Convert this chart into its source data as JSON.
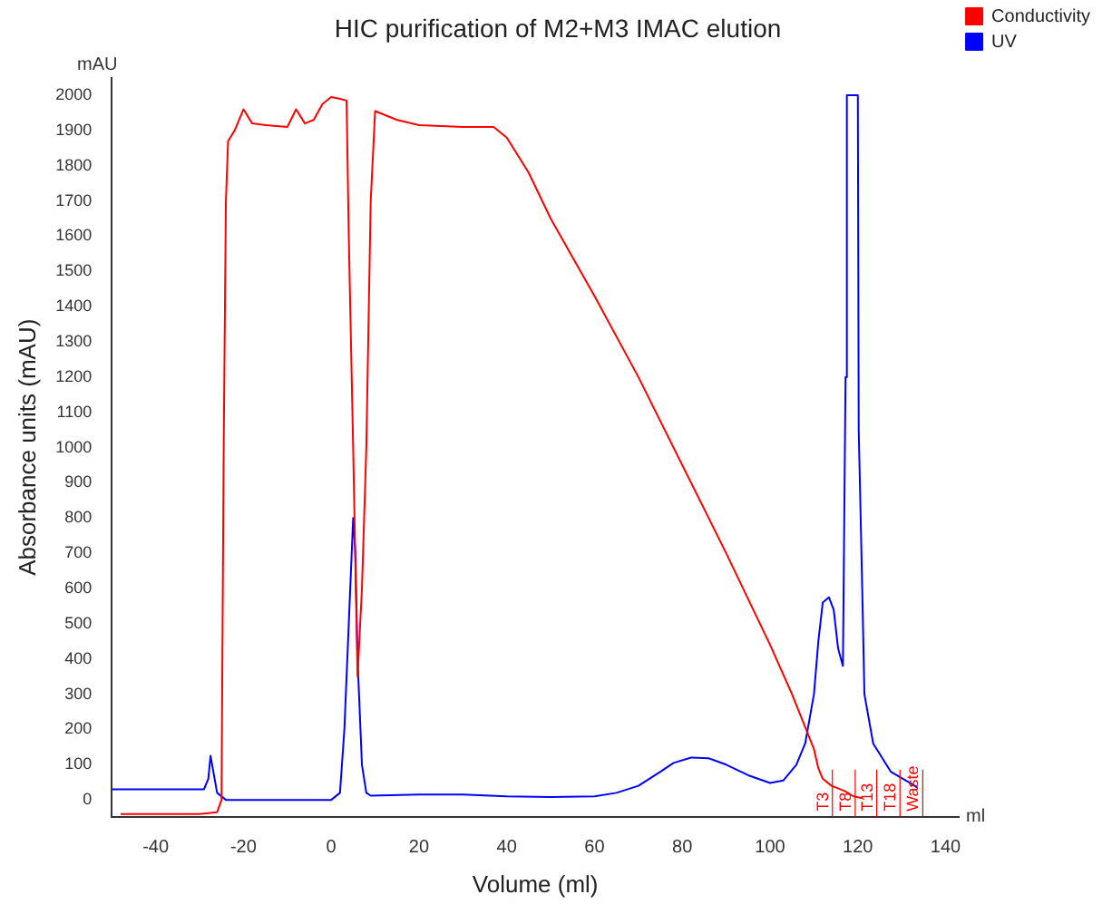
{
  "chart_data": {
    "type": "line",
    "title": "HIC purification of M2+M3 IMAC elution",
    "xlabel": "Volume (ml)",
    "ylabel": "Absorbance units (mAU)",
    "xlim": [
      -50,
      143
    ],
    "ylim": [
      -48,
      2050
    ],
    "xticks": [
      -40,
      -20,
      0,
      20,
      40,
      60,
      80,
      100,
      120,
      140
    ],
    "yticks": [
      0,
      100,
      200,
      300,
      400,
      500,
      600,
      700,
      800,
      900,
      1000,
      1100,
      1200,
      1300,
      1400,
      1500,
      1600,
      1700,
      1800,
      1900,
      2000
    ],
    "grid": false,
    "legend": "top right",
    "marker": "none",
    "line_style": "solid",
    "annotations": [
      "mAU",
      "ml"
    ],
    "ref_lines": [
      {
        "axis": "x",
        "value": 114.2,
        "label": "T3",
        "color": "#ff0000"
      },
      {
        "axis": "x",
        "value": 119.4,
        "label": "T8",
        "color": "#ff0000"
      },
      {
        "axis": "x",
        "value": 124.3,
        "label": "T13",
        "color": "#ff0000"
      },
      {
        "axis": "x",
        "value": 129.6,
        "label": "T18",
        "color": "#ff0000"
      },
      {
        "axis": "x",
        "value": 134.8,
        "label": "Waste",
        "color": "#ff0000"
      }
    ],
    "series": [
      {
        "name": "Conductivity",
        "color": "#ff0000",
        "x": [
          -48,
          -30,
          -26,
          -25,
          -24.5,
          -24,
          -23.5,
          -22,
          -20,
          -18,
          -15,
          -10,
          -8,
          -6,
          -4,
          -2,
          0,
          2,
          3.5,
          4,
          5,
          6,
          7,
          8,
          9,
          10,
          15,
          20,
          30,
          37,
          40,
          45,
          50,
          60,
          70,
          80,
          90,
          100,
          105,
          110,
          111,
          112,
          114,
          117,
          119,
          121
        ],
        "values": [
          -40,
          -40,
          -35,
          0,
          1000,
          1700,
          1870,
          1900,
          1960,
          1920,
          1915,
          1910,
          1960,
          1920,
          1930,
          1975,
          1995,
          1990,
          1985,
          1600,
          1000,
          350,
          600,
          1000,
          1700,
          1955,
          1930,
          1915,
          1910,
          1910,
          1880,
          1780,
          1650,
          1430,
          1200,
          950,
          700,
          440,
          300,
          144,
          90,
          60,
          40,
          25,
          10,
          5
        ]
      },
      {
        "name": "UV",
        "color": "#0000ff",
        "x": [
          -50,
          -29,
          -28,
          -27.5,
          -27,
          -26,
          -24,
          0,
          2,
          3,
          4,
          5,
          5.5,
          6,
          7,
          8,
          9,
          20,
          30,
          40,
          50,
          60,
          65,
          70,
          75,
          78,
          82,
          86,
          90,
          95,
          100,
          103,
          106,
          108,
          110,
          111,
          112,
          113.4,
          114.5,
          115.5,
          116.6,
          117.2,
          117.5,
          120,
          120.2,
          121,
          121.5,
          123.5,
          127.5,
          131.6,
          133.6
        ],
        "values": [
          30,
          30,
          60,
          125,
          90,
          20,
          0,
          0,
          20,
          200,
          500,
          800,
          700,
          400,
          100,
          20,
          12,
          15,
          15,
          10,
          8,
          10,
          20,
          40,
          80,
          105,
          120,
          118,
          100,
          70,
          48,
          55,
          100,
          160,
          300,
          450,
          560,
          575,
          540,
          430,
          380,
          1200,
          2000,
          2000,
          1050,
          600,
          300,
          160,
          80,
          50,
          35
        ]
      }
    ]
  }
}
